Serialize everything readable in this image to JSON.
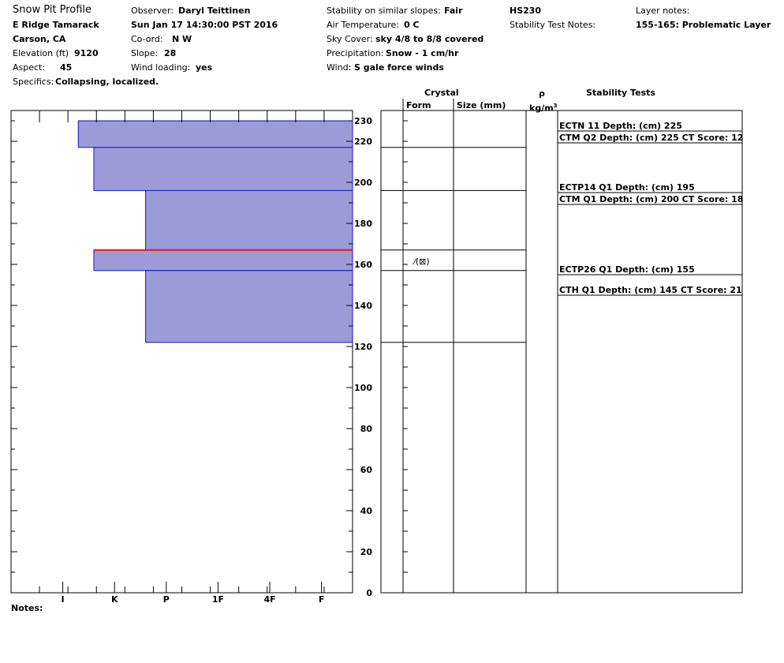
{
  "header": {
    "title": "Snow Pit Profile",
    "location": "E Ridge Tamarack",
    "region": "Carson, CA",
    "elevation_label": "Elevation (ft)",
    "elevation_value": "9120",
    "aspect_label": "Aspect:",
    "aspect_value": "45",
    "specifics_label": "Specifics:",
    "specifics_value": "Collapsing, localized.",
    "observer_label": "Observer:",
    "observer_value": "Daryl Teittinen",
    "datetime": "Sun Jan 17 14:30:00 PST 2016",
    "coord_label": "Co-ord:",
    "coord_value": "N  W",
    "slope_label": "Slope:",
    "slope_value": "28",
    "wind_loading_label": "Wind loading:",
    "wind_loading_value": "yes",
    "stability_label": "Stability on similar slopes:",
    "stability_value": "Fair",
    "air_temp_label": "Air Temperature:",
    "air_temp_value": "0 C",
    "sky_label": "Sky Cover:",
    "sky_value": "sky 4/8 to 8/8 covered",
    "precip_label": "Precipitation:",
    "precip_value": "Snow - 1 cm/hr",
    "wind_label": "Wind:",
    "wind_value": "S gale force winds",
    "hs": "HS230",
    "stability_test_notes_label": "Stability Test Notes:",
    "layer_notes_label": "Layer notes:",
    "layer_notes_value": "155-165: Problematic Layer"
  },
  "columns": {
    "crystal": "Crystal",
    "form": "Form",
    "size": "Size (mm)",
    "rho": "ρ",
    "density_unit": "kg/m",
    "density_unit_sup": "3",
    "stability_tests": "Stability Tests"
  },
  "notes_label": "Notes:",
  "chart_data": {
    "type": "bar",
    "orientation": "horizontal-step",
    "ylim": [
      0,
      235
    ],
    "yticks": [
      0,
      20,
      40,
      60,
      80,
      100,
      120,
      140,
      160,
      180,
      200,
      220,
      230
    ],
    "hardness_scale": [
      "I",
      "K",
      "P",
      "1F",
      "4F",
      "F"
    ],
    "hardness_scale_positions": {
      "I": 1,
      "K": 2,
      "P": 3,
      "1F": 4,
      "4F": 5,
      "F": 6
    },
    "hardness_max": 6.6,
    "layers": [
      {
        "top": 230,
        "bottom": 217,
        "hardness": 5.3
      },
      {
        "top": 217,
        "bottom": 196,
        "hardness": 5.0
      },
      {
        "top": 196,
        "bottom": 167,
        "hardness": 4.0
      },
      {
        "top": 167,
        "bottom": 157,
        "hardness": 5.0
      },
      {
        "top": 157,
        "bottom": 122,
        "hardness": 4.0
      }
    ],
    "problem_layer_depth": 167,
    "layer_boundaries": [
      217,
      196,
      167,
      157,
      122
    ],
    "crystal_form": {
      "depth": 162,
      "symbol": "⁄(⊠)"
    },
    "stability_tests": [
      {
        "depth": 225,
        "text": "ECTN 11   Depth: (cm) 225"
      },
      {
        "depth": 225,
        "text": "CTM Q2 Depth: (cm) 225 CT Score: 12"
      },
      {
        "depth": 195,
        "text": "ECTP14 Q1 Depth: (cm) 195"
      },
      {
        "depth": 200,
        "text": "CTM Q1 Depth: (cm) 200 CT Score: 18"
      },
      {
        "depth": 155,
        "text": "ECTP26 Q1 Depth: (cm) 155"
      },
      {
        "depth": 145,
        "text": "CTH Q1 Depth: (cm) 145 CT Score: 21"
      }
    ],
    "colors": {
      "layer_fill": "#9b9bd8",
      "layer_stroke": "#1515c8",
      "problem_line": "#e8121b"
    }
  }
}
